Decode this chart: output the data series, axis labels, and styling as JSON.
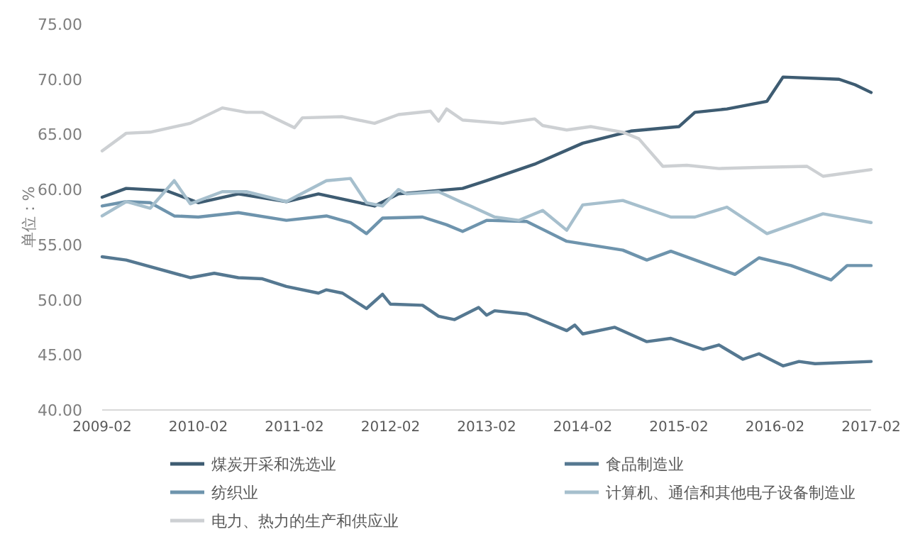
{
  "chart_data": {
    "type": "line",
    "ylabel": "单位：%",
    "legend": "bottom",
    "grid": false,
    "xlim": [
      "2009-02",
      "2017-02"
    ],
    "xticks": [
      "2009-02",
      "2010-02",
      "2011-02",
      "2012-02",
      "2013-02",
      "2014-02",
      "2015-02",
      "2016-02",
      "2017-02"
    ],
    "ylim": [
      40,
      75
    ],
    "yticks": [
      {
        "value": 40,
        "label": "40.00"
      },
      {
        "value": 45,
        "label": "45.00"
      },
      {
        "value": 50,
        "label": "50.00"
      },
      {
        "value": 55,
        "label": "55.00"
      },
      {
        "value": 60,
        "label": "60.00"
      },
      {
        "value": 65,
        "label": "65.00"
      },
      {
        "value": 70,
        "label": "70.00"
      },
      {
        "value": 75,
        "label": "75.00"
      }
    ],
    "series": [
      {
        "name": "煤炭开采和洗选业",
        "color": "#3e5c72",
        "x": [
          "2009-02",
          "2009-05",
          "2009-10",
          "2010-02",
          "2010-07",
          "2011-01",
          "2011-05",
          "2011-12",
          "2012-03",
          "2012-11",
          "2013-02",
          "2013-08",
          "2014-02",
          "2014-08",
          "2015-02",
          "2015-04",
          "2015-08",
          "2016-01",
          "2016-03",
          "2016-10",
          "2016-12",
          "2017-02"
        ],
        "values": [
          59.3,
          60.1,
          59.9,
          58.8,
          59.6,
          58.9,
          59.6,
          58.5,
          59.6,
          60.1,
          60.8,
          62.3,
          64.2,
          65.3,
          65.7,
          67.0,
          67.3,
          68.0,
          70.2,
          70.0,
          69.5,
          68.8
        ]
      },
      {
        "name": "食品制造业",
        "color": "#557891",
        "x": [
          "2009-02",
          "2009-05",
          "2010-01",
          "2010-04",
          "2010-07",
          "2010-10",
          "2011-01",
          "2011-05",
          "2011-06",
          "2011-08",
          "2011-11",
          "2012-01",
          "2012-02",
          "2012-06",
          "2012-08",
          "2012-10",
          "2013-01",
          "2013-02",
          "2013-03",
          "2013-07",
          "2013-12",
          "2014-01",
          "2014-02",
          "2014-06",
          "2014-10",
          "2015-01",
          "2015-05",
          "2015-07",
          "2015-10",
          "2015-12",
          "2016-03",
          "2016-05",
          "2016-07",
          "2017-02"
        ],
        "values": [
          53.9,
          53.6,
          52.0,
          52.4,
          52.0,
          51.9,
          51.2,
          50.6,
          50.9,
          50.6,
          49.2,
          50.5,
          49.6,
          49.5,
          48.5,
          48.2,
          49.3,
          48.6,
          49.0,
          48.7,
          47.2,
          47.7,
          46.9,
          47.5,
          46.2,
          46.5,
          45.5,
          45.9,
          44.6,
          45.1,
          44.0,
          44.4,
          44.2,
          44.4
        ]
      },
      {
        "name": "纺织业",
        "color": "#6e94ad",
        "x": [
          "2009-02",
          "2009-05",
          "2009-08",
          "2009-11",
          "2010-02",
          "2010-07",
          "2011-01",
          "2011-06",
          "2011-09",
          "2011-11",
          "2012-01",
          "2012-06",
          "2012-09",
          "2012-11",
          "2013-02",
          "2013-07",
          "2013-12",
          "2014-07",
          "2014-10",
          "2015-01",
          "2015-09",
          "2015-12",
          "2016-04",
          "2016-09",
          "2016-11",
          "2017-02"
        ],
        "values": [
          58.5,
          58.9,
          58.8,
          57.6,
          57.5,
          57.9,
          57.2,
          57.6,
          57.0,
          56.0,
          57.4,
          57.5,
          56.8,
          56.2,
          57.2,
          57.1,
          55.3,
          54.5,
          53.6,
          54.4,
          52.3,
          53.8,
          53.1,
          51.8,
          53.1,
          53.1
        ]
      },
      {
        "name": "计算机、通信和其他电子设备制造业",
        "color": "#a6bfcd",
        "x": [
          "2009-02",
          "2009-05",
          "2009-08",
          "2009-11",
          "2010-01",
          "2010-05",
          "2010-08",
          "2011-01",
          "2011-06",
          "2011-09",
          "2011-11",
          "2012-01",
          "2012-03",
          "2012-04",
          "2012-08",
          "2012-11",
          "2012-12",
          "2013-03",
          "2013-06",
          "2013-09",
          "2013-12",
          "2014-02",
          "2014-07",
          "2015-01",
          "2015-04",
          "2015-08",
          "2016-01",
          "2016-08",
          "2017-02"
        ],
        "values": [
          57.6,
          58.9,
          58.3,
          60.8,
          58.7,
          59.8,
          59.8,
          58.9,
          60.8,
          61.0,
          58.8,
          58.5,
          60.0,
          59.6,
          59.8,
          58.8,
          58.5,
          57.5,
          57.2,
          58.1,
          56.3,
          58.6,
          59.0,
          57.5,
          57.5,
          58.4,
          56.0,
          57.8,
          57.0
        ]
      },
      {
        "name": "电力、热力的生产和供应业",
        "color": "#cdd0d3",
        "x": [
          "2009-02",
          "2009-05",
          "2009-08",
          "2010-01",
          "2010-05",
          "2010-08",
          "2010-10",
          "2011-02",
          "2011-03",
          "2011-08",
          "2011-12",
          "2012-03",
          "2012-07",
          "2012-08",
          "2012-09",
          "2012-11",
          "2013-04",
          "2013-08",
          "2013-09",
          "2013-12",
          "2014-03",
          "2014-07",
          "2014-09",
          "2014-12",
          "2015-03",
          "2015-07",
          "2015-12",
          "2016-06",
          "2016-08",
          "2017-02"
        ],
        "values": [
          63.5,
          65.1,
          65.2,
          66.0,
          67.4,
          67.0,
          67.0,
          65.6,
          66.5,
          66.6,
          66.0,
          66.8,
          67.1,
          66.2,
          67.3,
          66.3,
          66.0,
          66.4,
          65.8,
          65.4,
          65.7,
          65.2,
          64.6,
          62.1,
          62.2,
          61.9,
          62.0,
          62.1,
          61.2,
          61.8
        ]
      }
    ]
  }
}
